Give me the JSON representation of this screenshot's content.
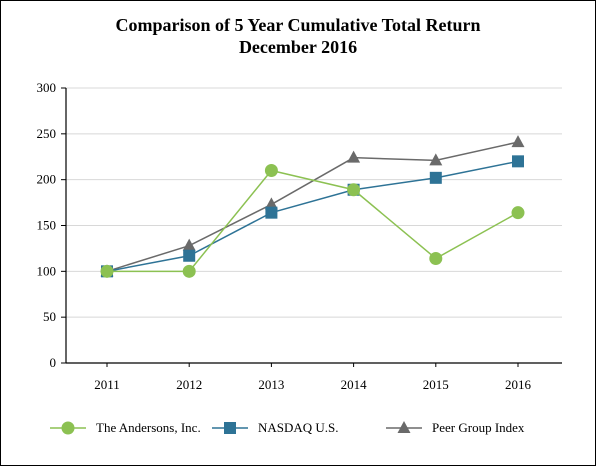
{
  "chart_data": {
    "type": "line",
    "title": "Comparison of 5 Year Cumulative Total Return",
    "subtitle": "December 2016",
    "categories": [
      "2011",
      "2012",
      "2013",
      "2014",
      "2015",
      "2016"
    ],
    "ylim": [
      0,
      300
    ],
    "yticks": [
      "0",
      "50",
      "100",
      "150",
      "200",
      "250",
      "300"
    ],
    "grid": true,
    "legend_position": "bottom",
    "series": [
      {
        "name": "The Andersons, Inc.",
        "values": [
          100,
          100,
          210,
          189,
          114,
          164
        ],
        "color": "#8cc152",
        "marker": "circle"
      },
      {
        "name": "NASDAQ U.S.",
        "values": [
          100,
          117,
          164,
          189,
          202,
          220
        ],
        "color": "#2e7396",
        "marker": "square"
      },
      {
        "name": "Peer Group Index",
        "values": [
          100,
          128,
          173,
          224,
          221,
          241
        ],
        "color": "#6a6a6a",
        "marker": "triangle"
      }
    ]
  }
}
